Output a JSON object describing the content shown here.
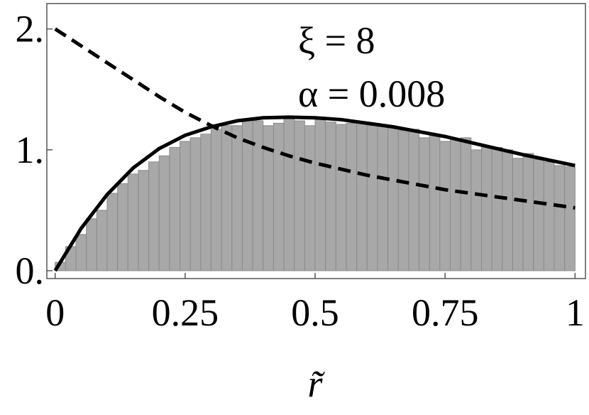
{
  "chart_data": {
    "type": "histogram",
    "bins": [
      0,
      0.02,
      0.04,
      0.06,
      0.08,
      0.1,
      0.12,
      0.14,
      0.16,
      0.18,
      0.2,
      0.22,
      0.24,
      0.26,
      0.28,
      0.3,
      0.32,
      0.34,
      0.36,
      0.38,
      0.4,
      0.42,
      0.44,
      0.46,
      0.48,
      0.5,
      0.52,
      0.54,
      0.56,
      0.58,
      0.6,
      0.62,
      0.64,
      0.66,
      0.68,
      0.7,
      0.72,
      0.74,
      0.76,
      0.78,
      0.8,
      0.82,
      0.84,
      0.86,
      0.88,
      0.9,
      0.92,
      0.94,
      0.96,
      0.98,
      1
    ],
    "counts": [
      0.07,
      0.2,
      0.3,
      0.43,
      0.5,
      0.64,
      0.72,
      0.8,
      0.83,
      0.9,
      0.95,
      1.02,
      1.07,
      1.1,
      1.13,
      1.17,
      1.2,
      1.2,
      1.25,
      1.24,
      1.2,
      1.22,
      1.27,
      1.24,
      1.2,
      1.27,
      1.23,
      1.21,
      1.22,
      1.22,
      1.2,
      1.2,
      1.19,
      1.16,
      1.17,
      1.1,
      1.12,
      1.07,
      1.09,
      1.1,
      1.0,
      1.03,
      1.02,
      1.0,
      0.93,
      0.97,
      0.92,
      0.9,
      0.87,
      0.86
    ],
    "color": "#a8a8a8",
    "curves": [
      {
        "style": "solid",
        "color": "#000000",
        "x": [
          0,
          0.05,
          0.1,
          0.15,
          0.2,
          0.25,
          0.3,
          0.35,
          0.4,
          0.45,
          0.5,
          0.55,
          0.6,
          0.65,
          0.7,
          0.75,
          0.8,
          0.85,
          0.9,
          0.95,
          1
        ],
        "values": [
          0,
          0.35,
          0.63,
          0.85,
          1.01,
          1.12,
          1.19,
          1.24,
          1.265,
          1.27,
          1.265,
          1.25,
          1.22,
          1.19,
          1.15,
          1.11,
          1.06,
          1.01,
          0.96,
          0.915,
          0.87
        ]
      },
      {
        "style": "dashed",
        "color": "#000000",
        "x": [
          0,
          0.05,
          0.1,
          0.15,
          0.2,
          0.25,
          0.3,
          0.35,
          0.4,
          0.45,
          0.5,
          0.55,
          0.6,
          0.65,
          0.7,
          0.75,
          0.8,
          0.85,
          0.9,
          0.95,
          1
        ],
        "values": [
          2.0,
          1.86,
          1.72,
          1.58,
          1.44,
          1.31,
          1.2,
          1.1,
          1.02,
          0.95,
          0.89,
          0.84,
          0.79,
          0.75,
          0.71,
          0.67,
          0.64,
          0.61,
          0.58,
          0.55,
          0.52
        ]
      }
    ],
    "annotations": [
      "ξ = 8",
      "α = 0.008"
    ],
    "x_label": "r̃",
    "xlim": [
      -0.016,
      1.02
    ],
    "ylim": [
      -0.065,
      2.21
    ],
    "xticks": [
      0,
      0.25,
      0.5,
      0.75,
      1
    ],
    "yticks": [
      {
        "value": 0,
        "label": "0."
      },
      {
        "value": 1,
        "label": "1."
      },
      {
        "value": 2,
        "label": "2."
      }
    ]
  }
}
